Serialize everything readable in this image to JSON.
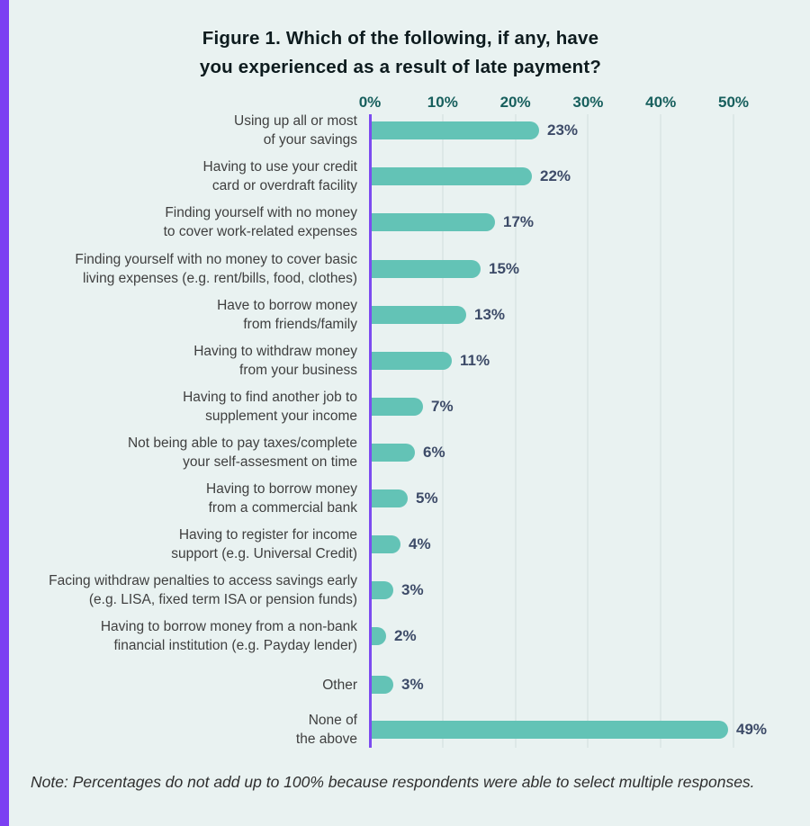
{
  "page": {
    "title_line1": "Figure 1. Which of the following, if any, have",
    "title_line2": "you experienced as a result of late payment?",
    "note": "Note: Percentages do not add up to 100% because respondents were able to select multiple responses."
  },
  "colors": {
    "background": "#e9f2f1",
    "left_stripe": "#7b3ff2",
    "axis_line": "#7c4bf0",
    "bar_fill": "#63c3b6",
    "axis_tick_label": "#175f5d",
    "value_label": "#3d4b68",
    "category_label": "#3f3f3f",
    "gridline": "#dde8e7",
    "title_text": "#0d1b1e"
  },
  "chart_data": {
    "type": "bar",
    "orientation": "horizontal",
    "title": "Figure 1. Which of the following, if any, have you experienced as a result of late payment?",
    "xlabel": "",
    "ylabel": "",
    "xlim": [
      0,
      50
    ],
    "unit": "%",
    "grid": true,
    "x_axis_ticks": [
      "0%",
      "10%",
      "20%",
      "30%",
      "40%",
      "50%"
    ],
    "x_axis_tick_values": [
      0,
      10,
      20,
      30,
      40,
      50
    ],
    "categories": [
      "Using up all or most of your savings",
      "Having to use your credit card or overdraft facility",
      "Finding yourself with no money to cover work-related expenses",
      "Finding yourself with no money to cover basic living expenses (e.g. rent/bills, food, clothes)",
      "Have to borrow money from friends/family",
      "Having to withdraw money from your business",
      "Having to find another job to supplement your income",
      "Not being able to pay taxes/complete your self-assesment on time",
      "Having to borrow money from a commercial bank",
      "Having to register for income support (e.g. Universal Credit)",
      "Facing withdraw penalties to access savings early (e.g. LISA, fixed term ISA or pension funds)",
      "Having to borrow money from a non-bank financial institution (e.g. Payday lender)",
      "Other",
      "None of the above"
    ],
    "label_lines": [
      [
        "Using up all or most",
        "of your savings"
      ],
      [
        "Having to use your credit",
        "card or overdraft facility"
      ],
      [
        "Finding yourself with no money",
        "to cover work-related expenses"
      ],
      [
        "Finding yourself with no money to cover basic",
        "living expenses (e.g. rent/bills, food, clothes)"
      ],
      [
        "Have to borrow money",
        "from friends/family"
      ],
      [
        "Having to withdraw money",
        "from your business"
      ],
      [
        "Having to find another job to",
        "supplement your income"
      ],
      [
        "Not being able to pay taxes/complete",
        "your self-assesment on time"
      ],
      [
        "Having to borrow money",
        "from a commercial bank"
      ],
      [
        "Having to register for income",
        "support (e.g. Universal Credit)"
      ],
      [
        "Facing withdraw penalties to access savings early",
        "(e.g. LISA, fixed term ISA or pension funds)"
      ],
      [
        "Having to borrow money from a non-bank",
        "financial institution (e.g. Payday lender)"
      ],
      [
        "Other"
      ],
      [
        "None of",
        "the above"
      ]
    ],
    "values": [
      23,
      22,
      17,
      15,
      13,
      11,
      7,
      6,
      5,
      4,
      3,
      2,
      3,
      49
    ],
    "value_labels": [
      "23%",
      "22%",
      "17%",
      "15%",
      "13%",
      "11%",
      "7%",
      "6%",
      "5%",
      "4%",
      "3%",
      "2%",
      "3%",
      "49%"
    ],
    "note": "Note: Percentages do not add up to 100% because respondents were able to select multiple responses."
  }
}
